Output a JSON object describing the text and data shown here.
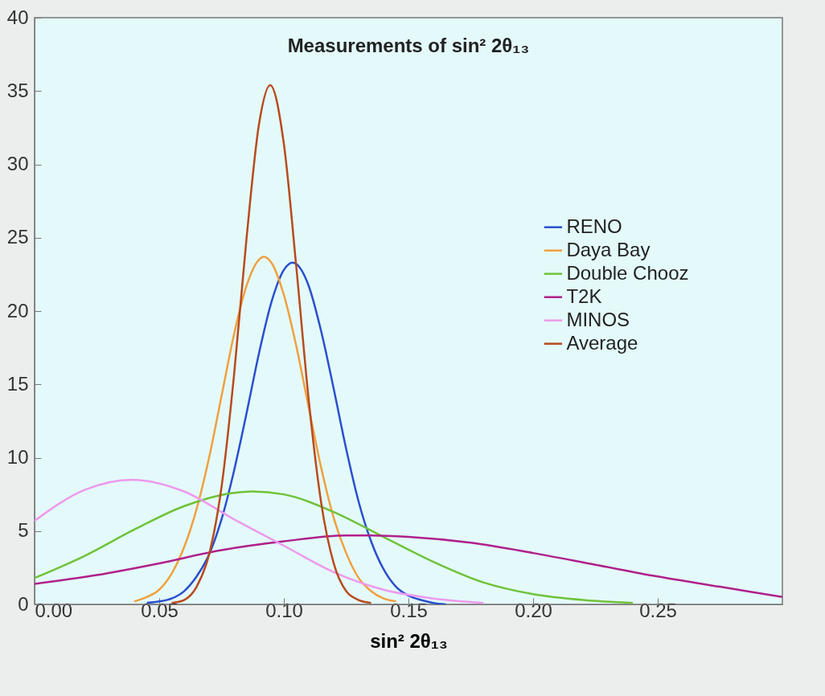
{
  "chart_data": {
    "type": "line",
    "title": "Measurements of sin² 2θ₁₃",
    "xlabel": "sin² 2θ₁₃",
    "xlim": [
      0,
      0.3
    ],
    "ylim": [
      0,
      40
    ],
    "xticks": [
      {
        "value": 0,
        "label": "0.00"
      },
      {
        "value": 0.05,
        "label": "0.05"
      },
      {
        "value": 0.1,
        "label": "0.10"
      },
      {
        "value": 0.15,
        "label": "0.15"
      },
      {
        "value": 0.2,
        "label": "0.20"
      },
      {
        "value": 0.25,
        "label": "0.25"
      }
    ],
    "yticks": [
      0,
      5,
      10,
      15,
      20,
      25,
      30,
      35,
      40
    ],
    "grid": false,
    "legend": "right",
    "marker": "none",
    "line_style": "solid",
    "series": [
      {
        "name": "RENO",
        "color": "#2a4fcf",
        "x": [
          0.045,
          0.05,
          0.055,
          0.06,
          0.065,
          0.07,
          0.075,
          0.08,
          0.085,
          0.09,
          0.095,
          0.1,
          0.1035,
          0.105,
          0.11,
          0.115,
          0.12,
          0.125,
          0.13,
          0.135,
          0.14,
          0.145,
          0.15,
          0.155,
          0.16,
          0.165
        ],
        "values": [
          0.1,
          0.2,
          0.4,
          0.9,
          1.9,
          3.4,
          5.8,
          9.1,
          13.0,
          17.1,
          20.6,
          22.8,
          23.3,
          23.2,
          21.7,
          18.6,
          14.7,
          10.6,
          7.0,
          4.3,
          2.4,
          1.2,
          0.6,
          0.3,
          0.1,
          0
        ]
      },
      {
        "name": "Daya Bay",
        "color": "#f0a040",
        "x": [
          0.04,
          0.045,
          0.05,
          0.055,
          0.06,
          0.065,
          0.07,
          0.075,
          0.08,
          0.085,
          0.09,
          0.092,
          0.095,
          0.1,
          0.105,
          0.11,
          0.115,
          0.12,
          0.125,
          0.13,
          0.135,
          0.14,
          0.145
        ],
        "values": [
          0.2,
          0.5,
          1.0,
          2.1,
          3.9,
          6.5,
          10.0,
          14.2,
          18.4,
          21.7,
          23.5,
          23.7,
          23.3,
          21.1,
          17.6,
          13.4,
          9.3,
          5.9,
          3.5,
          1.8,
          0.9,
          0.4,
          0.2
        ]
      },
      {
        "name": "Double Chooz",
        "color": "#6fc23a",
        "x": [
          0,
          0.02,
          0.04,
          0.06,
          0.08,
          0.0875,
          0.1,
          0.12,
          0.14,
          0.16,
          0.18,
          0.2,
          0.22,
          0.24
        ],
        "values": [
          1.8,
          3.3,
          5.1,
          6.7,
          7.6,
          7.7,
          7.5,
          6.3,
          4.6,
          2.9,
          1.5,
          0.7,
          0.3,
          0.1
        ]
      },
      {
        "name": "T2K",
        "color": "#b0208a",
        "x": [
          0,
          0.025,
          0.05,
          0.075,
          0.1,
          0.125,
          0.135,
          0.15,
          0.175,
          0.2,
          0.225,
          0.25,
          0.275,
          0.3
        ],
        "values": [
          1.4,
          2.0,
          2.8,
          3.7,
          4.3,
          4.7,
          4.7,
          4.6,
          4.2,
          3.5,
          2.7,
          1.9,
          1.2,
          0.5
        ]
      },
      {
        "name": "MINOS",
        "color": "#ee99ee",
        "x": [
          0,
          0.02,
          0.039,
          0.06,
          0.08,
          0.1,
          0.12,
          0.14,
          0.16,
          0.18
        ],
        "values": [
          5.7,
          7.8,
          8.5,
          7.7,
          5.8,
          4.0,
          2.2,
          1.0,
          0.4,
          0.1
        ]
      },
      {
        "name": "Average",
        "color": "#b84a1e",
        "x": [
          0.055,
          0.06,
          0.065,
          0.07,
          0.075,
          0.08,
          0.085,
          0.09,
          0.0945,
          0.1,
          0.105,
          0.11,
          0.115,
          0.12,
          0.125,
          0.13,
          0.135
        ],
        "values": [
          0.1,
          0.3,
          1.2,
          3.4,
          8.0,
          15.6,
          24.9,
          32.7,
          35.4,
          31.4,
          23.0,
          13.9,
          6.9,
          2.8,
          0.9,
          0.3,
          0.1
        ]
      }
    ]
  }
}
